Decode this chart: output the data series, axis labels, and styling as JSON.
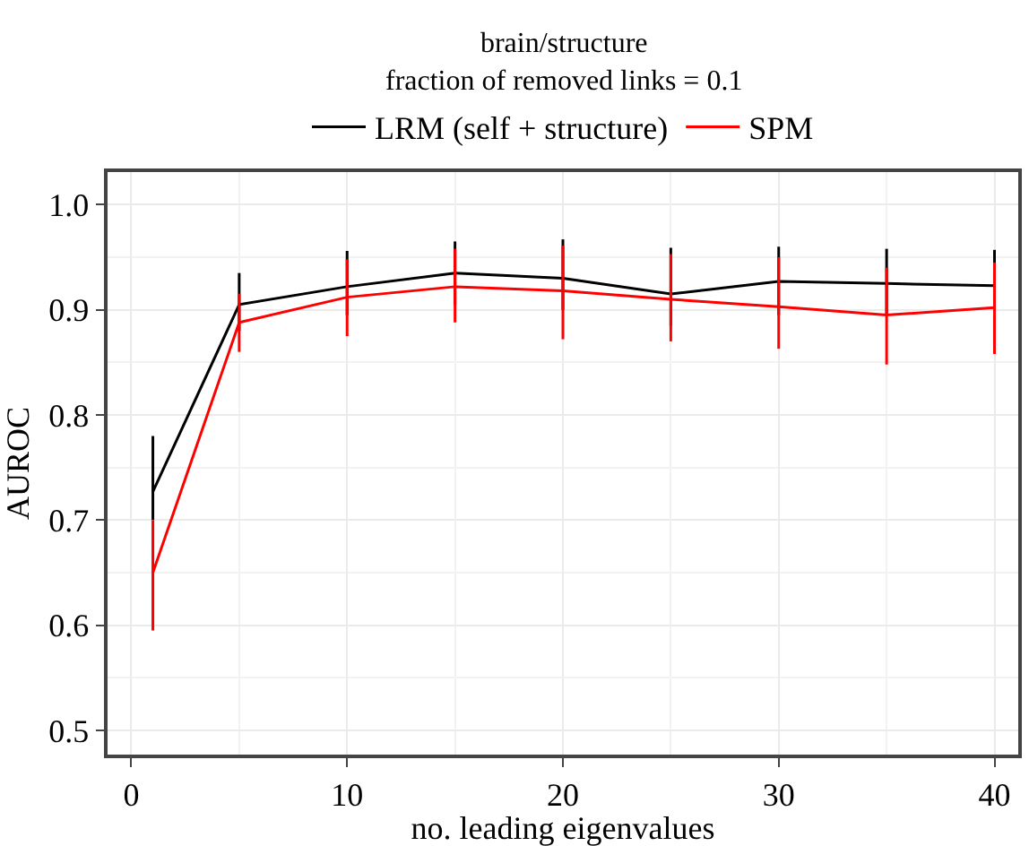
{
  "chart_data": {
    "type": "line",
    "title": "brain/structure",
    "subtitle": "fraction of removed links = 0.1",
    "xlabel": "no. leading eigenvalues",
    "ylabel": "AUROC",
    "x": [
      1,
      5,
      10,
      15,
      20,
      25,
      30,
      35,
      40
    ],
    "series": [
      {
        "name": "LRM (self + structure)",
        "color": "#000000",
        "values": [
          0.727,
          0.905,
          0.922,
          0.935,
          0.93,
          0.915,
          0.927,
          0.925,
          0.923
        ],
        "errors": [
          [
            0.7,
            0.78
          ],
          [
            0.88,
            0.935
          ],
          [
            0.895,
            0.956
          ],
          [
            0.905,
            0.965
          ],
          [
            0.9,
            0.967
          ],
          [
            0.885,
            0.959
          ],
          [
            0.895,
            0.96
          ],
          [
            0.895,
            0.958
          ],
          [
            0.89,
            0.957
          ]
        ]
      },
      {
        "name": "SPM",
        "color": "#ff0000",
        "values": [
          0.65,
          0.888,
          0.912,
          0.922,
          0.918,
          0.91,
          0.903,
          0.895,
          0.902
        ],
        "errors": [
          [
            0.595,
            0.7
          ],
          [
            0.86,
            0.915
          ],
          [
            0.875,
            0.948
          ],
          [
            0.888,
            0.958
          ],
          [
            0.872,
            0.961
          ],
          [
            0.87,
            0.953
          ],
          [
            0.863,
            0.95
          ],
          [
            0.848,
            0.94
          ],
          [
            0.858,
            0.945
          ]
        ]
      }
    ],
    "xlim": [
      -1.1,
      41.1
    ],
    "ylim": [
      0.477,
      1.031
    ],
    "xticks": [
      0,
      10,
      20,
      30,
      40
    ],
    "yticks": [
      0.5,
      0.6,
      0.7,
      0.8,
      0.9,
      {
        "value": 1,
        "label": "1.0"
      }
    ],
    "grid": true,
    "legend": "top",
    "marker": "none",
    "line_style": "solid"
  }
}
